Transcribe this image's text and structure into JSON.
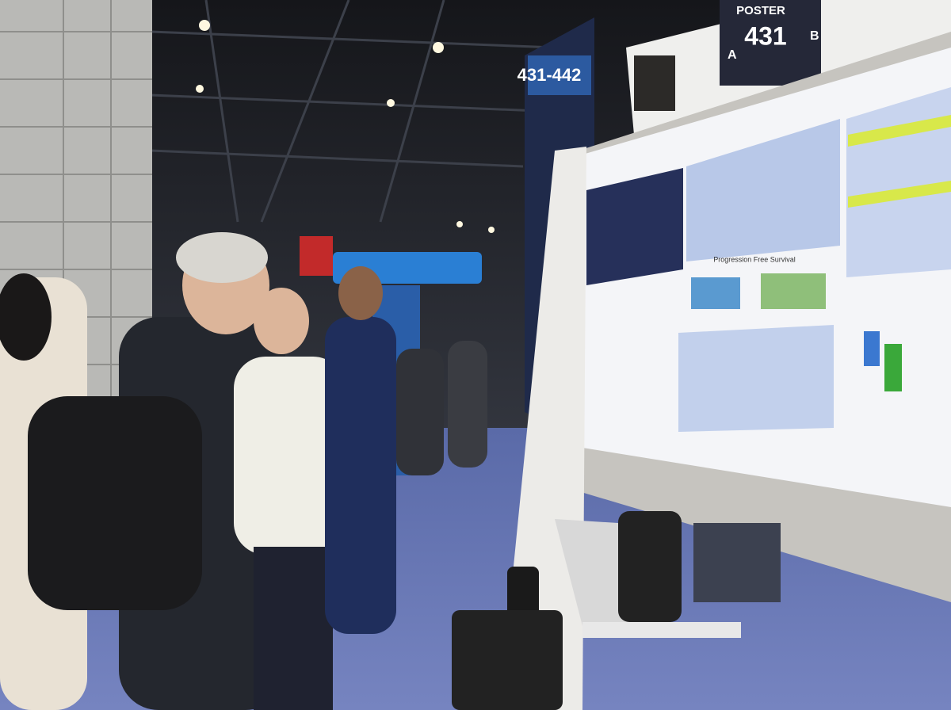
{
  "signs": {
    "range": "431-442",
    "poster_label": "POSTER",
    "poster_number": "431",
    "side_a": "A",
    "side_b": "B"
  },
  "poster": {
    "section": "Progression Free Survival"
  }
}
